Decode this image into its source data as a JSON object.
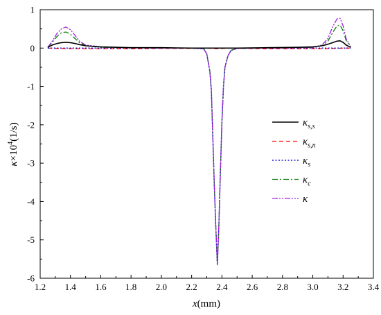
{
  "chart_data": {
    "type": "line",
    "xlabel": "x(mm)",
    "xlabel_italic_part": "x",
    "xlabel_rest": "(mm)",
    "ylabel": "κ×10⁴(1/s)",
    "ylabel_kappa": "κ",
    "ylabel_times": "×10",
    "ylabel_exp": "4",
    "ylabel_units": "(1/s)",
    "xlim": [
      1.2,
      3.4
    ],
    "ylim": [
      -6,
      1
    ],
    "xticks": [
      1.2,
      1.4,
      1.6,
      1.8,
      2.0,
      2.2,
      2.4,
      2.6,
      2.8,
      3.0,
      3.2,
      3.4
    ],
    "xtick_labels": [
      "1.2",
      "1.4",
      "1.6",
      "1.8",
      "2.0",
      "2.2",
      "2.4",
      "2.6",
      "2.8",
      "3.0",
      "3.2",
      "3.4"
    ],
    "yticks": [
      -6,
      -5,
      -4,
      -3,
      -2,
      -1,
      0,
      1
    ],
    "ytick_labels": [
      "-6",
      "-5",
      "-4",
      "-3",
      "-2",
      "-1",
      "0",
      "1"
    ],
    "legend_position": "right-middle",
    "grid": false,
    "series": [
      {
        "name": "κs,s",
        "main": "κ",
        "sub": "s,s",
        "color": "#000000",
        "dash": "",
        "width": 1.6,
        "x": [
          1.25,
          1.28,
          1.31,
          1.34,
          1.37,
          1.4,
          1.43,
          1.46,
          1.5,
          1.6,
          1.8,
          2.0,
          2.2,
          2.3,
          2.34,
          2.37,
          2.4,
          2.44,
          2.5,
          2.7,
          2.9,
          3.0,
          3.06,
          3.1,
          3.13,
          3.16,
          3.18,
          3.2,
          3.22,
          3.25
        ],
        "y": [
          0.02,
          0.08,
          0.12,
          0.14,
          0.15,
          0.14,
          0.12,
          0.09,
          0.06,
          0.03,
          0.01,
          0.01,
          0.0,
          0.0,
          0.0,
          0.0,
          0.0,
          0.0,
          0.0,
          0.01,
          0.02,
          0.03,
          0.06,
          0.1,
          0.14,
          0.18,
          0.19,
          0.15,
          0.08,
          0.02
        ]
      },
      {
        "name": "κs,n",
        "main": "κ",
        "sub": "s,n",
        "color": "#ff0000",
        "dash": "6,4",
        "width": 1.3,
        "x": [
          1.25,
          1.3,
          1.4,
          1.5,
          1.6,
          1.8,
          2.0,
          2.2,
          2.3,
          2.34,
          2.37,
          2.4,
          2.44,
          2.5,
          2.7,
          2.9,
          3.0,
          3.1,
          3.15,
          3.2,
          3.25
        ],
        "y": [
          0.0,
          -0.01,
          -0.02,
          -0.02,
          -0.02,
          -0.02,
          -0.01,
          -0.01,
          0.0,
          -0.01,
          -0.02,
          -0.01,
          0.0,
          -0.01,
          -0.02,
          -0.02,
          -0.02,
          -0.02,
          -0.01,
          0.0,
          0.0
        ]
      },
      {
        "name": "κs",
        "main": "κ",
        "sub": "s",
        "color": "#1a1ad8",
        "dash": "2,2.5",
        "width": 1.6,
        "x": [
          1.25,
          1.4,
          1.6,
          1.8,
          2.0,
          2.2,
          2.28,
          2.3,
          2.32,
          2.33,
          2.34,
          2.35,
          2.36,
          2.37,
          2.38,
          2.39,
          2.4,
          2.41,
          2.42,
          2.44,
          2.46,
          2.5,
          2.6,
          2.8,
          3.0,
          3.2,
          3.25
        ],
        "y": [
          0.0,
          0.0,
          0.0,
          0.0,
          0.0,
          0.0,
          -0.02,
          -0.15,
          -0.6,
          -1.1,
          -2.3,
          -3.6,
          -4.7,
          -5.65,
          -4.6,
          -3.2,
          -1.9,
          -1.0,
          -0.5,
          -0.2,
          -0.06,
          -0.01,
          0.0,
          0.0,
          0.0,
          0.0,
          0.0
        ]
      },
      {
        "name": "κc",
        "main": "κ",
        "sub": "c",
        "color": "#0a7a0a",
        "dash": "8,3,2,3",
        "width": 1.3,
        "x": [
          1.25,
          1.28,
          1.31,
          1.34,
          1.37,
          1.4,
          1.43,
          1.46,
          1.5,
          1.6,
          1.8,
          2.0,
          2.2,
          2.28,
          2.3,
          2.32,
          2.33,
          2.34,
          2.35,
          2.36,
          2.37,
          2.38,
          2.39,
          2.4,
          2.41,
          2.42,
          2.44,
          2.46,
          2.5,
          2.7,
          2.9,
          3.0,
          3.06,
          3.1,
          3.13,
          3.16,
          3.18,
          3.2,
          3.22,
          3.25
        ],
        "y": [
          0.02,
          0.15,
          0.3,
          0.4,
          0.42,
          0.36,
          0.25,
          0.14,
          0.06,
          0.02,
          0.01,
          0.0,
          0.0,
          -0.02,
          -0.15,
          -0.6,
          -1.1,
          -2.3,
          -3.6,
          -4.7,
          -5.65,
          -4.6,
          -3.2,
          -1.9,
          -1.0,
          -0.5,
          -0.2,
          -0.06,
          -0.01,
          0.0,
          0.01,
          0.02,
          0.06,
          0.18,
          0.4,
          0.58,
          0.6,
          0.45,
          0.2,
          0.03
        ]
      },
      {
        "name": "κ",
        "main": "κ",
        "sub": "",
        "color": "#a020e0",
        "dash": "8,2,2,2,2,2",
        "width": 1.3,
        "x": [
          1.25,
          1.28,
          1.31,
          1.34,
          1.37,
          1.4,
          1.43,
          1.46,
          1.5,
          1.6,
          1.8,
          2.0,
          2.2,
          2.28,
          2.3,
          2.32,
          2.33,
          2.34,
          2.35,
          2.36,
          2.37,
          2.38,
          2.39,
          2.4,
          2.41,
          2.42,
          2.44,
          2.46,
          2.5,
          2.7,
          2.9,
          3.0,
          3.06,
          3.1,
          3.13,
          3.16,
          3.18,
          3.2,
          3.22,
          3.25
        ],
        "y": [
          0.02,
          0.18,
          0.38,
          0.5,
          0.55,
          0.48,
          0.33,
          0.18,
          0.08,
          0.03,
          0.01,
          0.0,
          0.0,
          -0.02,
          -0.15,
          -0.6,
          -1.1,
          -2.3,
          -3.6,
          -4.7,
          -5.65,
          -4.6,
          -3.2,
          -1.9,
          -1.0,
          -0.5,
          -0.2,
          -0.06,
          -0.01,
          0.0,
          0.01,
          0.02,
          0.08,
          0.25,
          0.55,
          0.76,
          0.78,
          0.58,
          0.25,
          0.04
        ]
      }
    ]
  }
}
